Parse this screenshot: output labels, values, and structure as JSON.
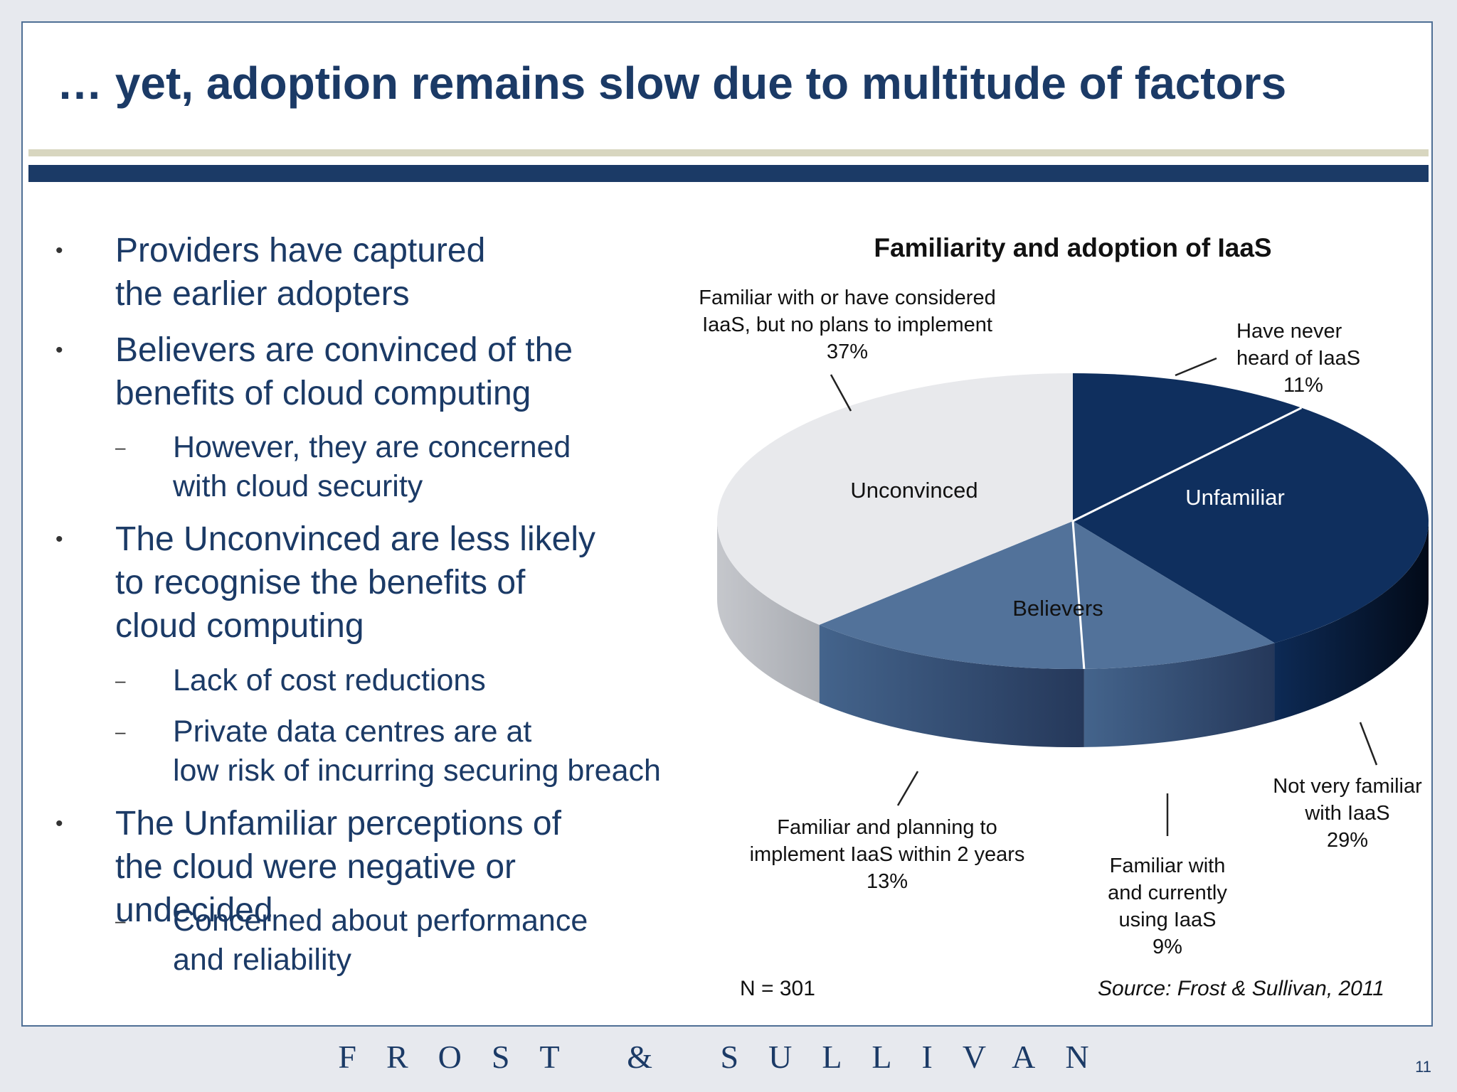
{
  "slide": {
    "title": "… yet, adoption remains slow  due to multitude of factors",
    "page_number": "11",
    "footer_logo": "FROST & SULLIVAN"
  },
  "bullets": [
    {
      "level": 1,
      "text": "Providers have captured the earlier adopters"
    },
    {
      "level": 1,
      "text": "Believers are convinced of the benefits of cloud computing"
    },
    {
      "level": 2,
      "text": "However, they are concerned with cloud security"
    },
    {
      "level": 1,
      "text": "The Unconvinced are less likely to recognise the benefits of cloud computing"
    },
    {
      "level": 2,
      "text": "Lack of cost reductions"
    },
    {
      "level": 2,
      "text": "Private data centres are at low risk of incurring securing breach"
    },
    {
      "level": 1,
      "text": "The Unfamiliar perceptions of the cloud were negative or undecided"
    },
    {
      "level": 2,
      "text": "Concerned about performance and reliability"
    }
  ],
  "chart_data": {
    "type": "pie",
    "title": "Familiarity and adoption of IaaS",
    "slices": [
      {
        "label": "Have never heard of IaaS",
        "value": 11,
        "value_label": "11%",
        "color": "#0f2f5e"
      },
      {
        "label": "Not very familiar with IaaS",
        "value": 29,
        "value_label": "29%",
        "color": "#0f2f5e"
      },
      {
        "label": "Familiar with and currently using IaaS",
        "value": 9,
        "value_label": "9%",
        "color": "#52729a"
      },
      {
        "label": "Familiar and planning to implement IaaS within 2 years",
        "value": 13,
        "value_label": "13%",
        "color": "#52729a"
      },
      {
        "label": "Familiar with or have considered IaaS, but no plans to implement",
        "value": 37,
        "value_label": "37%",
        "color": "#e8e9ec"
      }
    ],
    "groups": [
      {
        "name": "Unfamiliar",
        "slices": [
          0,
          1
        ]
      },
      {
        "name": "Believers",
        "slices": [
          2,
          3
        ]
      },
      {
        "name": "Unconvinced",
        "slices": [
          4
        ]
      }
    ],
    "sample_note": "N = 301",
    "source_note": "Source: Frost & Sullivan, 2011"
  }
}
